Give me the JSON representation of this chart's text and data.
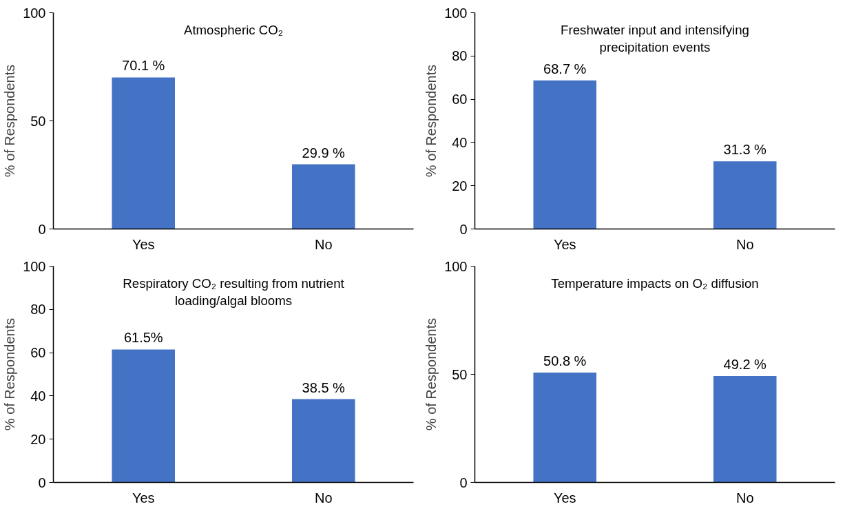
{
  "chart_data": [
    {
      "type": "bar",
      "title": "Atmospheric CO₂",
      "ylabel": "% of Respondents",
      "categories": [
        "Yes",
        "No"
      ],
      "values": [
        70.1,
        29.9
      ],
      "value_labels": [
        "70.1 %",
        "29.9 %"
      ],
      "color": "#4472c4",
      "ylim": [
        0,
        100
      ],
      "yticks": [
        0,
        50,
        100
      ],
      "grid": false,
      "legend": false
    },
    {
      "type": "bar",
      "title": "Freshwater input and intensifying precipitation events",
      "ylabel": "% of Respondents",
      "categories": [
        "Yes",
        "No"
      ],
      "values": [
        68.7,
        31.3
      ],
      "value_labels": [
        "68.7 %",
        "31.3 %"
      ],
      "color": "#4472c4",
      "ylim": [
        0,
        100
      ],
      "yticks": [
        0,
        20,
        40,
        60,
        80,
        100
      ],
      "grid": false,
      "legend": false
    },
    {
      "type": "bar",
      "title": "Respiratory CO₂ resulting from nutrient loading/algal blooms",
      "ylabel": "% of Respondents",
      "categories": [
        "Yes",
        "No"
      ],
      "values": [
        61.5,
        38.5
      ],
      "value_labels": [
        "61.5%",
        "38.5 %"
      ],
      "color": "#4472c4",
      "ylim": [
        0,
        100
      ],
      "yticks": [
        0,
        20,
        40,
        60,
        80,
        100
      ],
      "grid": false,
      "legend": false
    },
    {
      "type": "bar",
      "title": "Temperature impacts on O₂ diffusion",
      "ylabel": "% of Respondents",
      "categories": [
        "Yes",
        "No"
      ],
      "values": [
        50.8,
        49.2
      ],
      "value_labels": [
        "50.8 %",
        "49.2 %"
      ],
      "color": "#4472c4",
      "ylim": [
        0,
        100
      ],
      "yticks": [
        0,
        50,
        100
      ],
      "grid": false,
      "legend": false
    }
  ]
}
